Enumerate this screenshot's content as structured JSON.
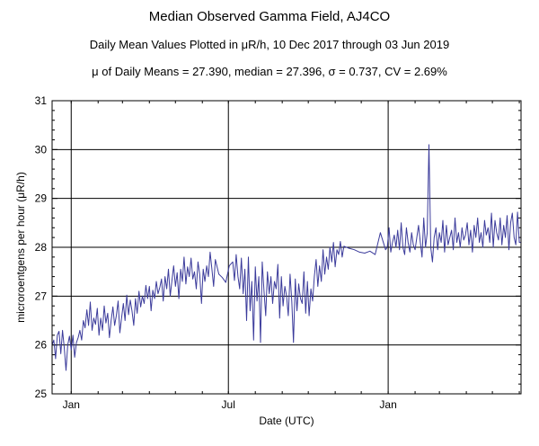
{
  "header": {
    "title": "Median Observed Gamma Field, AJ4CO",
    "subtitle": "Daily Mean Values Plotted in μR/h, 10 Dec 2017 through 03 Jun 2019",
    "stats": "μ of Daily Means = 27.390,   median = 27.396,   σ = 0.737,   CV = 2.69%"
  },
  "colors": {
    "series": "#3b3b9b",
    "grid": "#000000",
    "background": "#ffffff"
  },
  "chart_data": {
    "type": "line",
    "title": "Median Observed Gamma Field, AJ4CO",
    "subtitle": "Daily Mean Values Plotted in μR/h, 10 Dec 2017 through 03 Jun 2019",
    "xlabel": "Date (UTC)",
    "ylabel": "microroentgens per hour (μR/h)",
    "xlim": [
      "2017-12-10",
      "2019-06-03"
    ],
    "ylim": [
      25,
      31
    ],
    "yticks": [
      "25",
      "26",
      "27",
      "28",
      "29",
      "30",
      "31"
    ],
    "xticks": [
      {
        "date": "2018-01-01",
        "label": "Jan"
      },
      {
        "date": "2018-07-01",
        "label": "Jul"
      },
      {
        "date": "2019-01-01",
        "label": "Jan"
      }
    ],
    "grid": true,
    "x_start": "2017-12-10",
    "series": [
      {
        "dates": [
          "2017-12-10",
          "2017-12-12",
          "2017-12-14",
          "2017-12-16",
          "2017-12-18",
          "2017-12-20",
          "2017-12-22",
          "2017-12-24",
          "2017-12-26",
          "2017-12-28",
          "2017-12-30",
          "2018-01-01",
          "2018-01-03",
          "2018-01-05",
          "2018-01-07",
          "2018-01-09",
          "2018-01-11",
          "2018-01-13",
          "2018-01-15",
          "2018-01-17",
          "2018-01-19",
          "2018-01-21",
          "2018-01-23",
          "2018-01-25",
          "2018-01-27",
          "2018-01-29",
          "2018-01-31",
          "2018-02-02",
          "2018-02-04",
          "2018-02-06",
          "2018-02-08",
          "2018-02-10",
          "2018-02-12",
          "2018-02-14",
          "2018-02-16",
          "2018-02-18",
          "2018-02-20",
          "2018-02-22",
          "2018-02-24",
          "2018-02-26",
          "2018-02-28",
          "2018-03-02",
          "2018-03-04",
          "2018-03-06",
          "2018-03-08",
          "2018-03-10",
          "2018-03-12",
          "2018-03-14",
          "2018-03-16",
          "2018-03-18",
          "2018-03-20",
          "2018-03-22",
          "2018-03-24",
          "2018-03-26",
          "2018-03-28",
          "2018-03-30",
          "2018-04-01",
          "2018-04-03",
          "2018-04-05",
          "2018-04-07",
          "2018-04-09",
          "2018-04-11",
          "2018-04-13",
          "2018-04-15",
          "2018-04-17",
          "2018-04-19",
          "2018-04-21",
          "2018-04-23",
          "2018-04-25",
          "2018-04-27",
          "2018-04-29",
          "2018-05-01",
          "2018-05-03",
          "2018-05-05",
          "2018-05-07",
          "2018-05-09",
          "2018-05-11",
          "2018-05-13",
          "2018-05-15",
          "2018-05-17",
          "2018-05-19",
          "2018-05-21",
          "2018-05-23",
          "2018-05-25",
          "2018-05-27",
          "2018-05-29",
          "2018-05-31",
          "2018-06-02",
          "2018-06-04",
          "2018-06-06",
          "2018-06-08",
          "2018-06-10",
          "2018-06-12",
          "2018-06-14",
          "2018-06-16",
          "2018-06-20",
          "2018-06-24",
          "2018-06-28",
          "2018-07-02",
          "2018-07-06",
          "2018-07-08",
          "2018-07-10",
          "2018-07-12",
          "2018-07-14",
          "2018-07-16",
          "2018-07-18",
          "2018-07-20",
          "2018-07-22",
          "2018-07-24",
          "2018-07-26",
          "2018-07-28",
          "2018-07-30",
          "2018-08-01",
          "2018-08-03",
          "2018-08-05",
          "2018-08-07",
          "2018-08-09",
          "2018-08-11",
          "2018-08-13",
          "2018-08-15",
          "2018-08-17",
          "2018-08-19",
          "2018-08-21",
          "2018-08-23",
          "2018-08-25",
          "2018-08-27",
          "2018-08-29",
          "2018-08-31",
          "2018-09-02",
          "2018-09-04",
          "2018-09-06",
          "2018-09-08",
          "2018-09-10",
          "2018-09-12",
          "2018-09-14",
          "2018-09-16",
          "2018-09-18",
          "2018-09-20",
          "2018-09-22",
          "2018-09-24",
          "2018-09-26",
          "2018-09-28",
          "2018-09-30",
          "2018-10-02",
          "2018-10-04",
          "2018-10-06",
          "2018-10-08",
          "2018-10-10",
          "2018-10-12",
          "2018-10-14",
          "2018-10-16",
          "2018-10-18",
          "2018-10-20",
          "2018-10-22",
          "2018-10-24",
          "2018-10-26",
          "2018-10-28",
          "2018-10-30",
          "2018-11-01",
          "2018-11-03",
          "2018-11-05",
          "2018-11-07",
          "2018-11-09",
          "2018-11-11",
          "2018-11-17",
          "2018-11-23",
          "2018-11-29",
          "2018-12-05",
          "2018-12-11",
          "2018-12-17",
          "2018-12-23",
          "2018-12-29",
          "2018-12-31",
          "2019-01-02",
          "2019-01-04",
          "2019-01-06",
          "2019-01-08",
          "2019-01-10",
          "2019-01-12",
          "2019-01-14",
          "2019-01-16",
          "2019-01-18",
          "2019-01-20",
          "2019-01-22",
          "2019-01-24",
          "2019-01-26",
          "2019-01-28",
          "2019-01-30",
          "2019-02-01",
          "2019-02-03",
          "2019-02-05",
          "2019-02-07",
          "2019-02-09",
          "2019-02-11",
          "2019-02-13",
          "2019-02-15",
          "2019-02-17",
          "2019-02-19",
          "2019-02-21",
          "2019-02-23",
          "2019-02-25",
          "2019-02-27",
          "2019-03-01",
          "2019-03-03",
          "2019-03-05",
          "2019-03-07",
          "2019-03-09",
          "2019-03-11",
          "2019-03-13",
          "2019-03-15",
          "2019-03-17",
          "2019-03-19",
          "2019-03-21",
          "2019-03-23",
          "2019-03-25",
          "2019-03-27",
          "2019-03-29",
          "2019-03-31",
          "2019-04-02",
          "2019-04-04",
          "2019-04-06",
          "2019-04-08",
          "2019-04-10",
          "2019-04-12",
          "2019-04-14",
          "2019-04-16",
          "2019-04-18",
          "2019-04-20",
          "2019-04-22",
          "2019-04-24",
          "2019-04-26",
          "2019-04-28",
          "2019-04-30",
          "2019-05-02",
          "2019-05-04",
          "2019-05-06",
          "2019-05-08",
          "2019-05-10",
          "2019-05-12",
          "2019-05-14",
          "2019-05-16",
          "2019-05-18",
          "2019-05-20",
          "2019-05-22",
          "2019-05-24",
          "2019-05-26",
          "2019-05-28",
          "2019-05-30",
          "2019-06-01",
          "2019-06-03"
        ],
        "values": [
          26.0,
          26.1,
          25.72,
          26.2,
          26.28,
          25.82,
          26.3,
          25.95,
          25.48,
          26.0,
          26.18,
          25.9,
          26.2,
          25.75,
          26.05,
          26.15,
          26.3,
          26.1,
          26.5,
          26.35,
          26.72,
          26.4,
          26.88,
          26.3,
          26.55,
          26.42,
          26.75,
          26.2,
          26.55,
          26.3,
          26.8,
          26.45,
          26.65,
          26.15,
          26.5,
          26.78,
          26.4,
          26.6,
          26.9,
          26.25,
          26.55,
          26.85,
          26.5,
          27.02,
          26.62,
          26.92,
          26.7,
          26.4,
          26.95,
          26.65,
          27.1,
          26.78,
          27.0,
          26.85,
          27.22,
          26.95,
          27.2,
          26.7,
          27.12,
          26.95,
          27.3,
          27.05,
          27.18,
          27.35,
          26.9,
          27.4,
          27.15,
          27.55,
          27.0,
          27.32,
          27.62,
          27.2,
          27.48,
          26.95,
          27.55,
          27.3,
          27.8,
          27.25,
          27.6,
          27.4,
          27.78,
          27.35,
          27.5,
          27.15,
          27.7,
          27.45,
          26.85,
          27.55,
          27.3,
          27.62,
          27.4,
          27.9,
          27.55,
          27.2,
          27.75,
          27.45,
          27.38,
          27.28,
          27.62,
          27.7,
          27.32,
          27.85,
          27.4,
          27.15,
          27.78,
          27.05,
          27.55,
          26.5,
          27.8,
          26.7,
          27.3,
          26.1,
          27.6,
          26.9,
          27.4,
          26.05,
          27.7,
          27.1,
          26.6,
          27.5,
          27.05,
          27.4,
          26.85,
          27.3,
          27.15,
          27.65,
          26.55,
          27.4,
          26.8,
          27.2,
          27.0,
          26.6,
          27.45,
          26.9,
          26.05,
          27.35,
          26.7,
          27.25,
          26.95,
          26.85,
          27.5,
          26.65,
          27.3,
          26.6,
          27.15,
          26.9,
          27.4,
          27.75,
          27.2,
          27.62,
          27.3,
          27.95,
          27.45,
          27.8,
          27.55,
          28.0,
          27.7,
          28.1,
          27.6,
          27.95,
          27.85,
          28.12,
          27.8,
          28.02,
          27.98,
          27.95,
          27.9,
          27.88,
          27.92,
          27.85,
          28.3,
          27.95,
          28.0,
          28.4,
          27.9,
          28.1,
          28.25,
          28.0,
          28.35,
          27.95,
          28.5,
          28.0,
          27.85,
          28.4,
          28.1,
          27.9,
          28.3,
          28.05,
          27.95,
          28.2,
          28.45,
          28.1,
          27.8,
          28.6,
          28.0,
          28.3,
          30.1,
          28.0,
          27.7,
          28.2,
          28.4,
          27.95,
          28.3,
          28.1,
          28.55,
          27.9,
          28.45,
          28.05,
          28.2,
          28.35,
          27.95,
          28.6,
          28.1,
          28.3,
          28.0,
          28.4,
          28.15,
          28.25,
          28.5,
          28.05,
          28.35,
          27.9,
          28.45,
          28.2,
          28.6,
          28.1,
          28.3,
          28.0,
          28.55,
          28.25,
          28.4,
          28.1,
          28.7,
          28.0,
          28.55,
          28.3,
          28.15,
          28.6,
          28.05,
          28.45,
          28.2,
          28.65,
          27.95,
          28.5,
          28.7,
          28.2,
          28.05,
          28.72,
          28.1,
          28.1
        ]
      }
    ]
  }
}
